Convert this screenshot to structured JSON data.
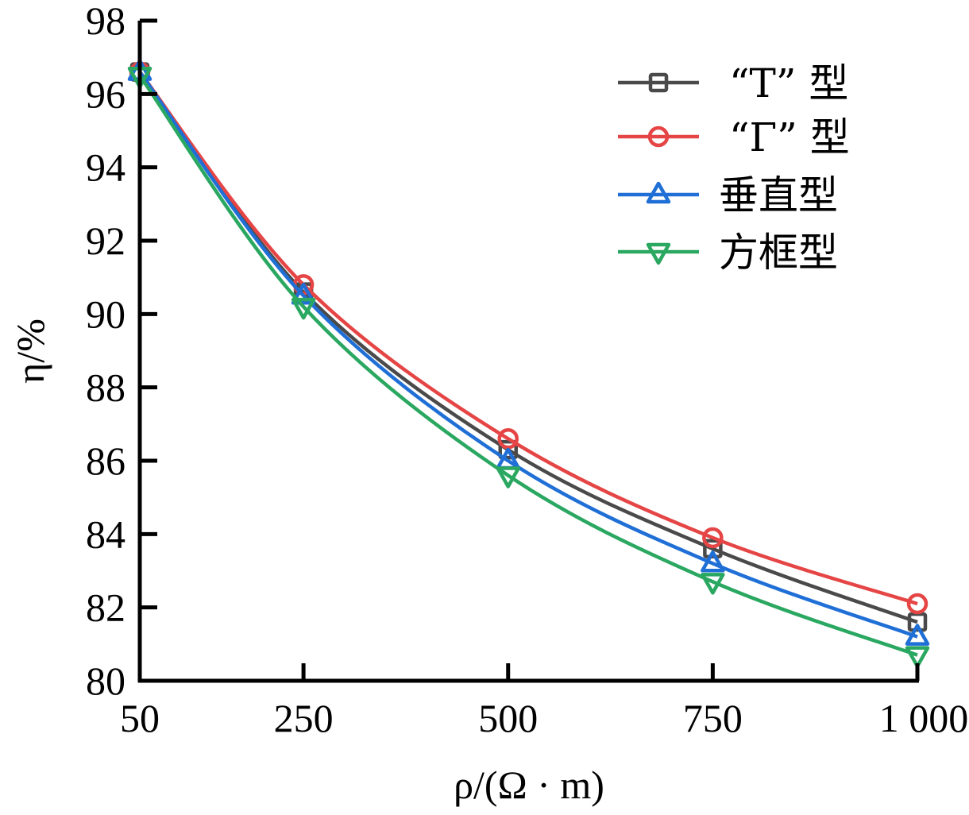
{
  "chart_data": {
    "type": "line",
    "title": "",
    "xlabel": "ρ/(Ω · m)",
    "ylabel": "η/%",
    "x": [
      50,
      250,
      500,
      750,
      1000
    ],
    "x_tick_labels": [
      "50",
      "250",
      "500",
      "750",
      "1 000"
    ],
    "y_ticks": [
      80,
      82,
      84,
      86,
      88,
      90,
      92,
      94,
      96,
      98
    ],
    "y_tick_labels": [
      "80",
      "82",
      "84",
      "86",
      "88",
      "90",
      "92",
      "94",
      "96",
      "98"
    ],
    "xlim": [
      50,
      1000
    ],
    "ylim": [
      80,
      98
    ],
    "grid": false,
    "legend_position": "top-right",
    "series": [
      {
        "name": "“T” 型",
        "color": "#4a4a4a",
        "marker": "square",
        "values": [
          96.6,
          90.6,
          86.3,
          83.6,
          81.6
        ]
      },
      {
        "name": "“Γ” 型",
        "color": "#e54545",
        "marker": "circle",
        "values": [
          96.6,
          90.8,
          86.6,
          83.9,
          82.1
        ]
      },
      {
        "name": "垂直型",
        "color": "#1f6fd6",
        "marker": "triangle-up",
        "values": [
          96.6,
          90.5,
          86.0,
          83.2,
          81.2
        ]
      },
      {
        "name": "方框型",
        "color": "#2aa760",
        "marker": "triangle-down",
        "values": [
          96.5,
          90.2,
          85.6,
          82.7,
          80.7
        ]
      }
    ]
  }
}
